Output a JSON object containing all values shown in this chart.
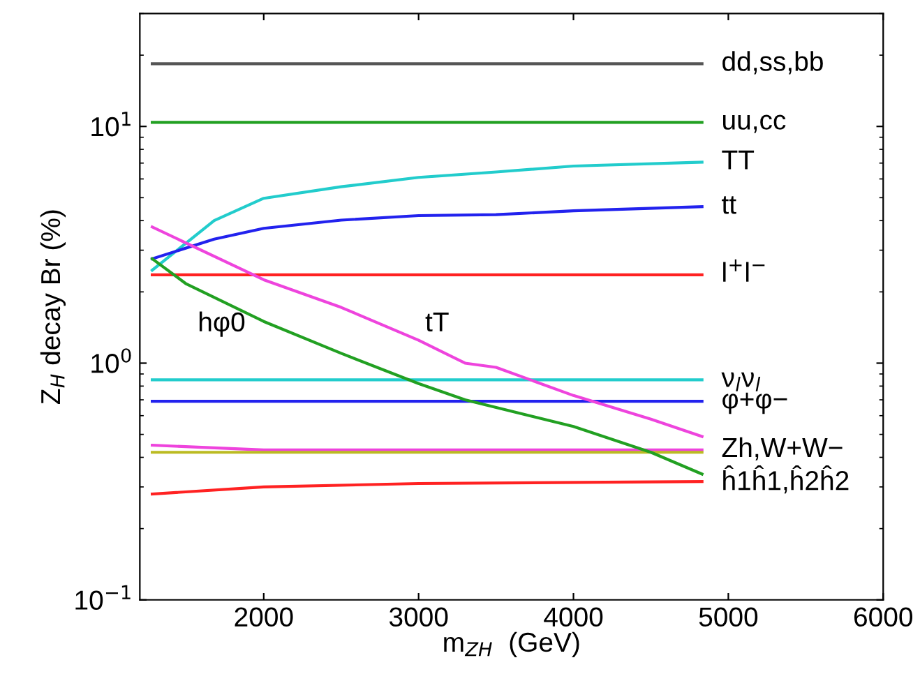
{
  "chart_data": {
    "type": "line",
    "xlabel": "m$_{ZH}$  (GeV)",
    "ylabel": "Z$_{H}$ decay Br (%)",
    "log": "y",
    "grid": false,
    "legend": false,
    "xlim": [
      1200,
      6000
    ],
    "xticks": [
      2000,
      3000,
      4000,
      5000,
      6000
    ],
    "ylim": [
      0.1,
      30
    ],
    "yticks": [
      {
        "value": 0.1,
        "label": "10$^{−1}$"
      },
      {
        "value": 1,
        "label": "10$^{0}$"
      },
      {
        "value": 10,
        "label": "10$^{1}$"
      }
    ],
    "series": [
      {
        "name": "dd,ss,bb",
        "color": "#555555",
        "x": [
          1280,
          4830
        ],
        "values": [
          18.4,
          18.4
        ]
      },
      {
        "name": "uu,cc",
        "color": "#22a022",
        "x": [
          1280,
          4830
        ],
        "values": [
          10.4,
          10.4
        ]
      },
      {
        "name": "TT",
        "color": "#22cccc",
        "x": [
          1280,
          1680,
          2000,
          2500,
          3000,
          3500,
          4000,
          4830
        ],
        "values": [
          2.47,
          4.0,
          4.97,
          5.56,
          6.09,
          6.42,
          6.8,
          7.06
        ]
      },
      {
        "name": "tt",
        "color": "#2222ee",
        "x": [
          1280,
          1680,
          2000,
          2500,
          3000,
          3500,
          4000,
          4830
        ],
        "values": [
          2.76,
          3.34,
          3.71,
          4.02,
          4.2,
          4.24,
          4.4,
          4.58
        ]
      },
      {
        "name": "l$^{+}$l$^{−}$",
        "color": "#ff2222",
        "x": [
          1280,
          4830
        ],
        "values": [
          2.36,
          2.36
        ]
      },
      {
        "name": "ν$_{l}$ν$_{l}$",
        "color": "#22cccc",
        "x": [
          1280,
          4830
        ],
        "values": [
          0.85,
          0.85
        ]
      },
      {
        "name": "φ+φ−",
        "color": "#2222ee",
        "x": [
          1280,
          4830
        ],
        "values": [
          0.69,
          0.69
        ]
      },
      {
        "name": "Zh,W+W−",
        "color": "#ee44dd",
        "x": [
          1280,
          2000,
          4830
        ],
        "values": [
          0.45,
          0.43,
          0.43
        ]
      },
      {
        "color": "#bbbb22",
        "x": [
          1280,
          4830
        ],
        "values": [
          0.42,
          0.42
        ]
      },
      {
        "name": "ĥ1ĥ1,ĥ2ĥ2",
        "color": "#ff2222",
        "x": [
          1280,
          2000,
          3000,
          4830
        ],
        "values": [
          0.28,
          0.3,
          0.31,
          0.316
        ]
      },
      {
        "color": "#ee44dd",
        "x": [
          1280,
          2000,
          2500,
          3000,
          3300,
          3500,
          4000,
          4500,
          4830
        ],
        "values": [
          3.76,
          2.25,
          1.72,
          1.25,
          1.0,
          0.96,
          0.73,
          0.58,
          0.49
        ]
      },
      {
        "color": "#22a022",
        "x": [
          1280,
          1500,
          2000,
          2500,
          3000,
          3300,
          4000,
          4500,
          4830
        ],
        "values": [
          2.76,
          2.16,
          1.5,
          1.1,
          0.82,
          0.7,
          0.54,
          0.42,
          0.34
        ]
      }
    ],
    "annotations": [
      "hφ0",
      "tT"
    ]
  }
}
